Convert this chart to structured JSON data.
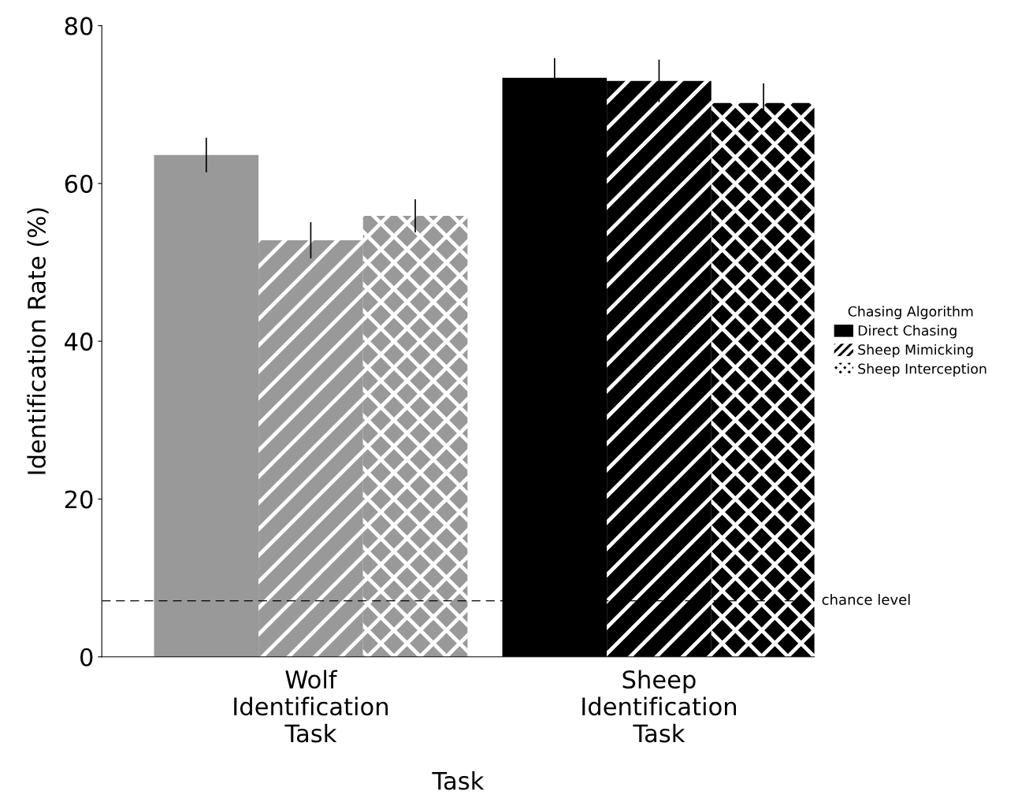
{
  "chart_data": {
    "type": "bar",
    "xlabel": "Task",
    "ylabel": "Identification Rate (%)",
    "legend_title": "Chasing Algorithm",
    "categories": [
      "Wolf\nIdentification\nTask",
      "Sheep\nIdentification\nTask"
    ],
    "series": [
      {
        "name": "Direct Chasing",
        "colors": [
          "#999999",
          "#000000"
        ],
        "values": [
          63.6,
          73.4
        ],
        "errors": [
          2.2,
          2.5
        ]
      },
      {
        "name": "Sheep Mimicking",
        "colors": [
          "#999999",
          "#000000"
        ],
        "values": [
          52.8,
          73.0
        ],
        "errors": [
          2.3,
          2.7
        ]
      },
      {
        "name": "Sheep Interception",
        "colors": [
          "#999999",
          "#000000"
        ],
        "values": [
          55.9,
          70.2
        ],
        "errors": [
          2.1,
          2.5
        ]
      }
    ],
    "ylim": [
      0,
      80
    ],
    "yticks": [
      0,
      20,
      40,
      60,
      80
    ],
    "grid": false,
    "legend": "right",
    "ref_lines": [
      {
        "axis": "y",
        "value": 7.1,
        "label": "chance level",
        "color": "#000000",
        "line_style": "dashed"
      }
    ]
  }
}
